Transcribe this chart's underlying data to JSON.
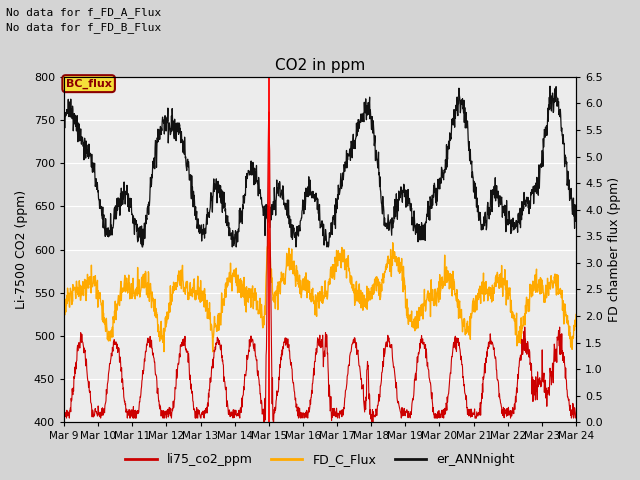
{
  "title": "CO2 in ppm",
  "ylabel_left": "Li-7500 CO2 (ppm)",
  "ylabel_right": "FD chamber flux (ppm)",
  "ylim_left": [
    400,
    800
  ],
  "ylim_right": [
    0.0,
    6.5
  ],
  "yticks_left": [
    400,
    450,
    500,
    550,
    600,
    650,
    700,
    750,
    800
  ],
  "yticks_right": [
    0.0,
    0.5,
    1.0,
    1.5,
    2.0,
    2.5,
    3.0,
    3.5,
    4.0,
    4.5,
    5.0,
    5.5,
    6.0,
    6.5
  ],
  "xtick_labels": [
    "Mar 9",
    "Mar 10",
    "Mar 11",
    "Mar 12",
    "Mar 13",
    "Mar 14",
    "Mar 15",
    "Mar 16",
    "Mar 17",
    "Mar 18",
    "Mar 19",
    "Mar 20",
    "Mar 21",
    "Mar 22",
    "Mar 23",
    "Mar 24"
  ],
  "annotations_top_left": [
    "No data for f_FD_A_Flux",
    "No data for f_FD_B_Flux"
  ],
  "bc_flux_label": "BC_flux",
  "legend_labels": [
    "li75_co2_ppm",
    "FD_C_Flux",
    "er_ANNnight"
  ],
  "legend_colors": [
    "#cc0000",
    "#ffaa00",
    "#111111"
  ],
  "line_colors": {
    "li75_co2_ppm": "#cc0000",
    "FD_C_Flux": "#ffaa00",
    "er_ANNnight": "#111111"
  },
  "vertical_line_x": 6.0,
  "fig_bg_color": "#d4d4d4",
  "plot_bg_color": "#ececec",
  "grid_color": "#ffffff"
}
